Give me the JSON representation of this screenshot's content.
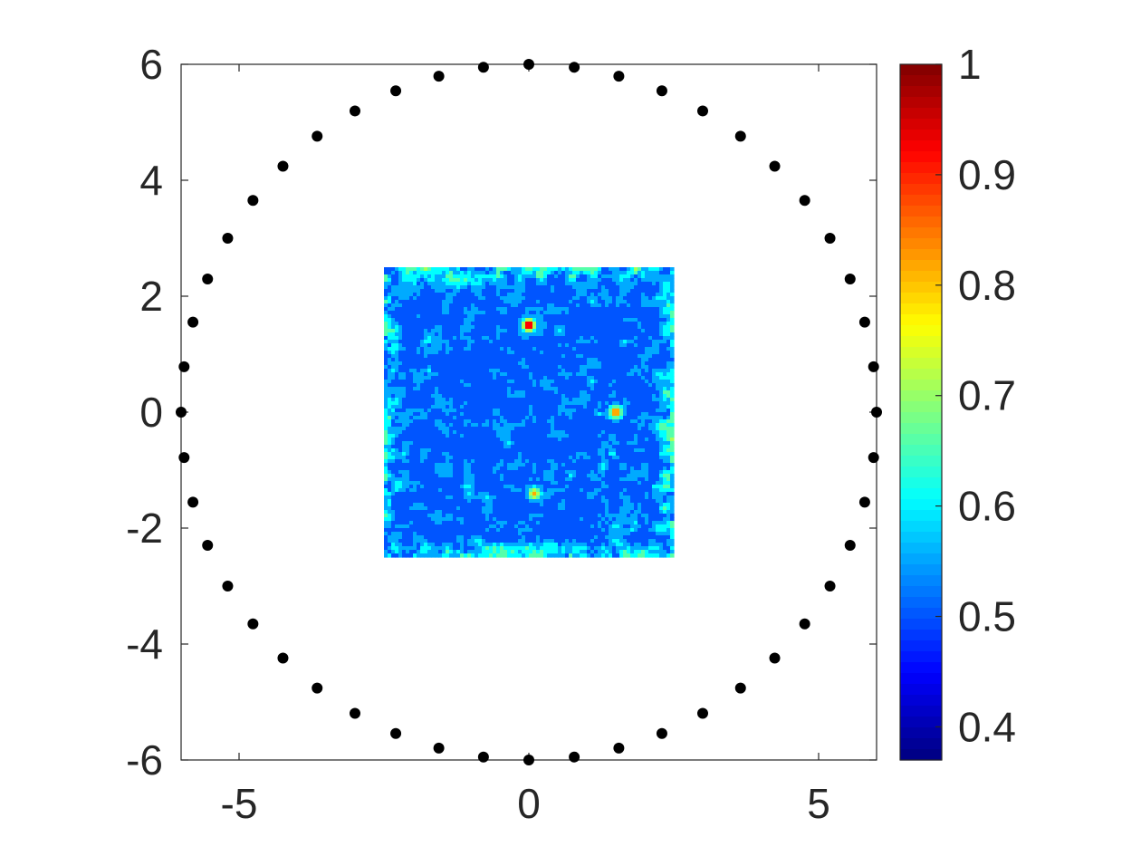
{
  "chart_data": {
    "type": "heatmap",
    "title": "",
    "xlabel": "",
    "ylabel": "",
    "xlim": [
      -6,
      6
    ],
    "ylim": [
      -6,
      6
    ],
    "x_ticks": [
      "-5",
      "0",
      "5"
    ],
    "y_ticks": [
      "-6",
      "-4",
      "-2",
      "0",
      "2",
      "4",
      "6"
    ],
    "grid": false,
    "colormap": "jet",
    "colorbar": {
      "range": [
        0.37,
        1.0
      ],
      "ticks": [
        "0.4",
        "0.5",
        "0.6",
        "0.7",
        "0.8",
        "0.9",
        "1"
      ]
    },
    "heatmap": {
      "x_range": [
        -2.5,
        2.5
      ],
      "y_range": [
        -2.5,
        2.5
      ],
      "background_level": 0.5,
      "peaks": [
        {
          "x": 0.0,
          "y": 1.5,
          "value": 0.97
        },
        {
          "x": 1.5,
          "y": 0.0,
          "value": 0.9
        },
        {
          "x": 0.1,
          "y": -1.4,
          "value": 0.8
        }
      ]
    },
    "scatter": {
      "marker_color": "#000000",
      "radius": 6,
      "count": 48,
      "start_angle_deg": 0
    }
  }
}
